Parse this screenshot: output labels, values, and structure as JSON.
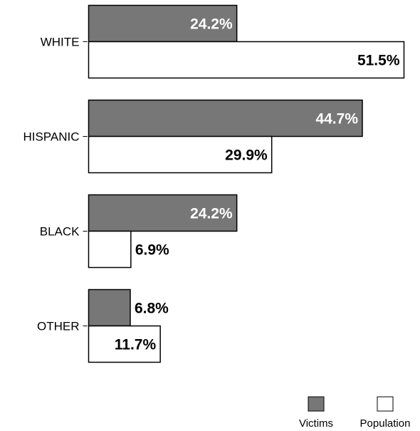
{
  "chart_data": {
    "type": "bar",
    "orientation": "horizontal",
    "categories": [
      "WHITE",
      "HISPANIC",
      "BLACK",
      "OTHER"
    ],
    "series": [
      {
        "name": "Victims",
        "values": [
          24.2,
          44.7,
          24.2,
          6.8
        ],
        "labels": [
          "24.2%",
          "44.7%",
          "24.2%",
          "6.8%"
        ],
        "color": "#777777"
      },
      {
        "name": "Population",
        "values": [
          51.5,
          29.9,
          6.9,
          11.7
        ],
        "labels": [
          "51.5%",
          "29.9%",
          "6.9%",
          "11.7%"
        ],
        "color": "#ffffff"
      }
    ],
    "xlim": [
      0,
      51.5
    ],
    "legend_position": "bottom-right",
    "grid": false
  }
}
